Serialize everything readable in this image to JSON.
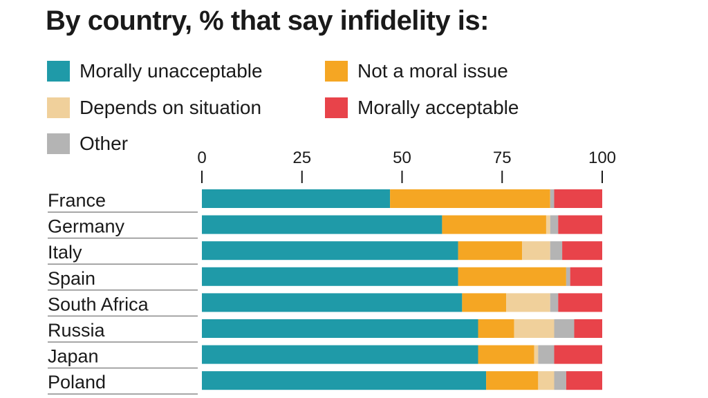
{
  "title": "By country, % that say infidelity is:",
  "colors": {
    "morally_unacceptable": "#1f9aa8",
    "not_a_moral_issue": "#f5a623",
    "depends_on_situation": "#f0d09b",
    "other": "#b4b4b4",
    "morally_acceptable": "#e8434a"
  },
  "legend": [
    {
      "label": "Morally unacceptable",
      "color": "#1f9aa8"
    },
    {
      "label": "Not a moral issue",
      "color": "#f5a623"
    },
    {
      "label": "Depends on situation",
      "color": "#f0d09b"
    },
    {
      "label": "Morally acceptable",
      "color": "#e8434a"
    },
    {
      "label": "Other",
      "color": "#b4b4b4"
    }
  ],
  "chart_data": {
    "type": "bar",
    "orientation": "horizontal",
    "stacked": true,
    "title": "By country, % that say infidelity is:",
    "xlabel": "",
    "ylabel": "",
    "xlim": [
      0,
      100
    ],
    "xticks": [
      0,
      25,
      50,
      75,
      100
    ],
    "categories": [
      "France",
      "Germany",
      "Italy",
      "Spain",
      "South Africa",
      "Russia",
      "Japan",
      "Poland"
    ],
    "series": [
      {
        "name": "Morally unacceptable",
        "color": "#1f9aa8",
        "values": [
          47,
          60,
          64,
          64,
          65,
          69,
          69,
          71
        ]
      },
      {
        "name": "Not a moral issue",
        "color": "#f5a623",
        "values": [
          40,
          26,
          16,
          27,
          11,
          9,
          14,
          13
        ]
      },
      {
        "name": "Depends on situation",
        "color": "#f0d09b",
        "values": [
          0,
          1,
          7,
          0,
          11,
          10,
          1,
          4
        ]
      },
      {
        "name": "Other",
        "color": "#b4b4b4",
        "values": [
          1,
          2,
          3,
          1,
          2,
          5,
          4,
          3
        ]
      },
      {
        "name": "Morally acceptable",
        "color": "#e8434a",
        "values": [
          12,
          11,
          10,
          8,
          11,
          7,
          12,
          9
        ]
      }
    ]
  }
}
